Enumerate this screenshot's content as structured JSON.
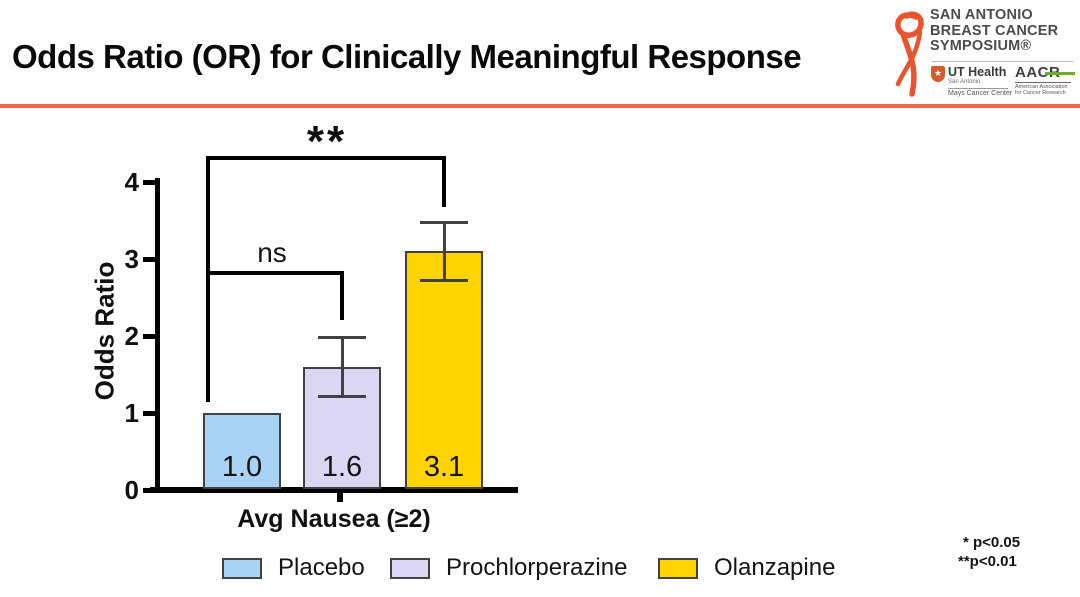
{
  "slide": {
    "title": "Odds Ratio (OR) for Clinically Meaningful Response",
    "footnotes": [
      "* p<0.05",
      "**p<0.01"
    ]
  },
  "logo": {
    "ribbon_color": "#e8542e",
    "symposium_lines": [
      "SAN ANTONIO",
      "BREAST CANCER",
      "SYMPOSIUM®"
    ],
    "ut_health": {
      "star": "★",
      "name": "UT Health",
      "city": "San Antonio",
      "center": "Mays Cancer Center"
    },
    "aacr": {
      "name": "AACR",
      "sub_line1": "American Association",
      "sub_line2": "for Cancer Research"
    }
  },
  "chart_data": {
    "type": "bar",
    "categories": [
      "Placebo",
      "Prochlorperazine",
      "Olanzapine"
    ],
    "group_label": "Avg Nausea (≥2)",
    "ylabel": "Odds Ratio",
    "ylim": [
      0,
      4
    ],
    "yticks": [
      0,
      1,
      2,
      3,
      4
    ],
    "grid": false,
    "legend_position": "bottom",
    "series": [
      {
        "name": "Placebo",
        "value": 1.0,
        "value_label": "1.0",
        "color": "#a9d2f4",
        "error_low": null,
        "error_high": null
      },
      {
        "name": "Prochlorperazine",
        "value": 1.6,
        "value_label": "1.6",
        "color": "#dad6f4",
        "error_low": 1.2,
        "error_high": 2.0
      },
      {
        "name": "Olanzapine",
        "value": 3.1,
        "value_label": "3.1",
        "color": "#ffd400",
        "error_low": 2.7,
        "error_high": 3.5
      }
    ],
    "significance": [
      {
        "comparison": "Placebo vs Prochlorperazine",
        "label": "ns"
      },
      {
        "comparison": "Placebo vs Olanzapine",
        "label": "**"
      }
    ]
  }
}
